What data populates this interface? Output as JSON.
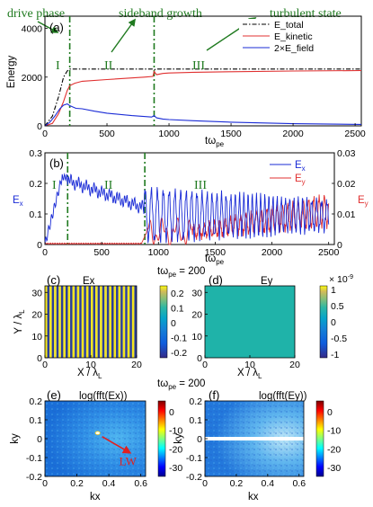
{
  "annotations": {
    "drive": "drive phase",
    "sideband": "sideband growth",
    "turbulent": "turbulent state"
  },
  "colors": {
    "green": "#1f7a1f",
    "total": "#000000",
    "kinetic": "#e03030",
    "field": "#1a2bd6",
    "ex": "#1a2bd6",
    "ey": "#e03030"
  },
  "chart_data": [
    {
      "id": "a",
      "type": "line",
      "panel": "(a)",
      "ylabel": "Energy",
      "xlabel": "tω",
      "xlabel_sub": "pe",
      "xlim": [
        0,
        2550
      ],
      "ylim": [
        0,
        4500
      ],
      "xticks": [
        "0",
        "500",
        "1000",
        "1500",
        "2000",
        "2500"
      ],
      "yticks": [
        "0",
        "2000",
        "4000"
      ],
      "phase_labels": [
        "I",
        "II",
        "III"
      ],
      "vlines": [
        200,
        880
      ],
      "series": [
        {
          "name": "E_total",
          "style": "dashdot",
          "x": [
            0,
            60,
            110,
            150,
            180,
            200,
            240,
            300,
            500,
            800,
            870,
            880,
            900,
            1000,
            1500,
            2000,
            2550
          ],
          "y": [
            0,
            400,
            1200,
            2000,
            2250,
            2330,
            2330,
            2330,
            2330,
            2330,
            2330,
            2300,
            2330,
            2330,
            2330,
            2330,
            2330
          ]
        },
        {
          "name": "E_kinetic",
          "style": "solid",
          "x": [
            0,
            60,
            110,
            150,
            180,
            200,
            240,
            300,
            500,
            800,
            870,
            880,
            900,
            950,
            1000,
            1200,
            1500,
            2000,
            2550
          ],
          "y": [
            0,
            100,
            500,
            1000,
            1450,
            1650,
            1750,
            1830,
            1900,
            2000,
            2030,
            2230,
            2100,
            2150,
            2170,
            2200,
            2220,
            2250,
            2270
          ]
        },
        {
          "name": "2×E_field",
          "style": "solid",
          "x": [
            0,
            40,
            80,
            120,
            150,
            180,
            200,
            250,
            300,
            400,
            500,
            700,
            860,
            880,
            900,
            950,
            1000,
            1200,
            1500,
            2000,
            2550
          ],
          "y": [
            0,
            150,
            400,
            700,
            850,
            900,
            830,
            720,
            700,
            600,
            520,
            420,
            360,
            420,
            330,
            280,
            260,
            210,
            150,
            90,
            60
          ]
        }
      ]
    },
    {
      "id": "b",
      "type": "line",
      "panel": "(b)",
      "ylabel_left": "E",
      "ylabel_left_sub": "x",
      "ylabel_right": "E",
      "ylabel_right_sub": "y",
      "xlabel": "tω",
      "xlabel_sub": "pe",
      "xlim": [
        0,
        2550
      ],
      "ylim_left": [
        0,
        0.3
      ],
      "ylim_right": [
        0,
        0.03
      ],
      "xticks": [
        "0",
        "500",
        "1000",
        "1500",
        "2000",
        "2500"
      ],
      "yticks_left": [
        "0",
        "0.1",
        "0.2",
        "0.3"
      ],
      "yticks_right": [
        "0",
        "0.01",
        "0.02",
        "0.03"
      ],
      "phase_labels": [
        "I",
        "II",
        "III"
      ],
      "vlines": [
        200,
        880
      ],
      "legend": [
        {
          "name": "E",
          "sub": "x"
        },
        {
          "name": "E",
          "sub": "y"
        }
      ]
    },
    {
      "id": "c",
      "type": "heatmap",
      "panel": "(c)",
      "title": "Ex",
      "time_label": "tω",
      "time_sub": "pe",
      "time_value": " = 200",
      "xlabel": "X / λ",
      "xlabel_sub": "L",
      "ylabel": "Y / λ",
      "ylabel_sub": "L",
      "xlim": [
        0,
        20
      ],
      "ylim": [
        0,
        33
      ],
      "xticks": [
        "0",
        "10",
        "20"
      ],
      "yticks": [
        "0",
        "10",
        "20",
        "30"
      ],
      "colorbar_ticks": [
        "0.2",
        "0.1",
        "0",
        "-0.1",
        "-0.2"
      ],
      "colorbar_range": [
        -0.2,
        0.2
      ],
      "stripes": 20
    },
    {
      "id": "d",
      "type": "heatmap",
      "panel": "(d)",
      "title": "Ey",
      "xlabel": "X / λ",
      "xlabel_sub": "L",
      "xlim": [
        0,
        20
      ],
      "ylim": [
        0,
        33
      ],
      "xticks": [
        "0",
        "10",
        "20"
      ],
      "yticks": [
        "0",
        "10",
        "20",
        "30"
      ],
      "colorbar_ticks": [
        "1",
        "0.5",
        "0",
        "-0.5",
        "-1"
      ],
      "colorbar_exponent": "× 10",
      "colorbar_exponent_power": "-9",
      "colorbar_range": [
        -1,
        1
      ]
    },
    {
      "id": "e",
      "type": "heatmap",
      "panel": "(e)",
      "title": "log(fft(Ex))",
      "time_label": "tω",
      "time_sub": "pe",
      "time_value": " = 200",
      "xlabel": "kx",
      "ylabel": "ky",
      "xlim": [
        0,
        0.63
      ],
      "ylim": [
        -0.2,
        0.2
      ],
      "xticks": [
        "0",
        "0.2",
        "0.4",
        "0.6"
      ],
      "yticks": [
        "-0.2",
        "-0.1",
        "0",
        "0.1",
        "0.2"
      ],
      "colorbar_ticks": [
        "0",
        "-10",
        "-20",
        "-30"
      ],
      "colorbar_range": [
        -35,
        5
      ],
      "marker_label": "LW",
      "marker_point": [
        0.33,
        0.03
      ]
    },
    {
      "id": "f",
      "type": "heatmap",
      "panel": "(f)",
      "title": "log(fft(Ey))",
      "xlabel": "kx",
      "ylabel": "ky",
      "xlim": [
        0,
        0.63
      ],
      "ylim": [
        -0.2,
        0.2
      ],
      "xticks": [
        "0",
        "0.2",
        "0.4",
        "0.6"
      ],
      "yticks": [
        "-0.2",
        "-0.1",
        "0",
        "0.1",
        "0.2"
      ],
      "colorbar_ticks": [
        "0",
        "-10",
        "-20",
        "-30"
      ],
      "colorbar_range": [
        -35,
        5
      ]
    }
  ]
}
